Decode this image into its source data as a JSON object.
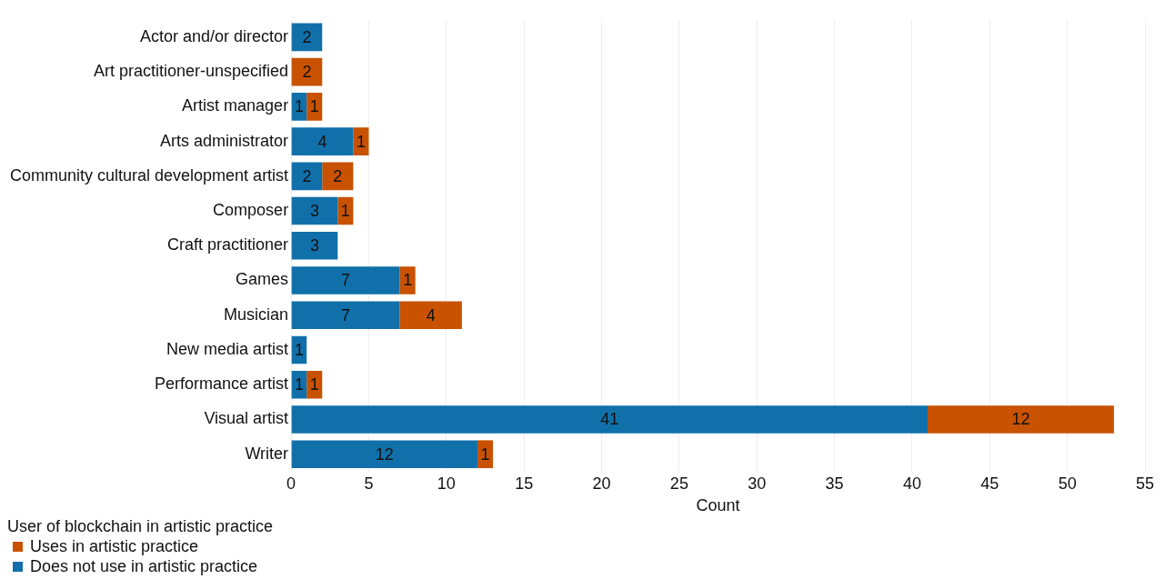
{
  "chart_data": {
    "type": "bar",
    "orientation": "horizontal",
    "stacked": true,
    "xlabel": "Count",
    "legend_title": "User of blockchain in artistic practice",
    "legend": "bottom left",
    "grid": "x",
    "data_labels": true,
    "categories": [
      "Actor and/or director",
      "Art practitioner-unspecified",
      "Artist manager",
      "Arts administrator",
      "Community cultural development artist",
      "Composer",
      "Craft practitioner",
      "Games",
      "Musician",
      "New media artist",
      "Performance artist",
      "Visual artist",
      "Writer"
    ],
    "xlim": [
      0,
      55
    ],
    "xticks": [
      0,
      5,
      10,
      15,
      20,
      25,
      30,
      35,
      40,
      45,
      50,
      55
    ],
    "series": [
      {
        "name": "Does not use in artistic practice",
        "color": "#1170aa",
        "values": [
          2,
          null,
          1,
          4,
          2,
          3,
          3,
          7,
          7,
          1,
          1,
          41,
          12
        ]
      },
      {
        "name": "Uses in artistic practice",
        "color": "#c85200",
        "values": [
          null,
          2,
          1,
          1,
          2,
          1,
          null,
          1,
          4,
          null,
          1,
          12,
          1
        ]
      }
    ]
  }
}
